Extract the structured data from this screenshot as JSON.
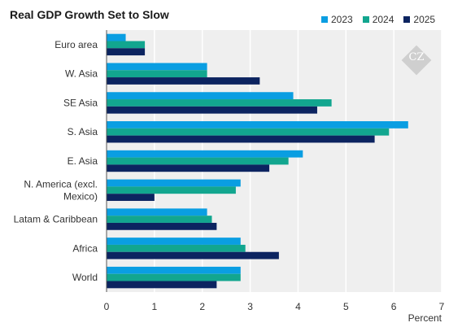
{
  "chart_data": {
    "type": "bar",
    "orientation": "horizontal",
    "title": "Real GDP Growth Set to Slow",
    "xlabel": "Percent",
    "ylabel": "",
    "xlim": [
      0,
      7
    ],
    "xticks": [
      0,
      1,
      2,
      3,
      4,
      5,
      6,
      7
    ],
    "grid": true,
    "legend_position": "top-right",
    "categories": [
      "Euro area",
      "W. Asia",
      "SE Asia",
      "S. Asia",
      "E. Asia",
      "N. America (excl. Mexico)",
      "Latam & Caribbean",
      "Africa",
      "World"
    ],
    "category_lines": [
      [
        "Euro area"
      ],
      [
        "W. Asia"
      ],
      [
        "SE Asia"
      ],
      [
        "S. Asia"
      ],
      [
        "E. Asia"
      ],
      [
        "N. America (excl.",
        "Mexico)"
      ],
      [
        "Latam & Caribbean"
      ],
      [
        "Africa"
      ],
      [
        "World"
      ]
    ],
    "series": [
      {
        "name": "2023",
        "color": "#0a9ee2",
        "values": [
          0.4,
          2.1,
          3.9,
          6.3,
          4.1,
          2.8,
          2.1,
          2.8,
          2.8
        ]
      },
      {
        "name": "2024",
        "color": "#12a68f",
        "values": [
          0.8,
          2.1,
          4.7,
          5.9,
          3.8,
          2.7,
          2.2,
          2.9,
          2.8
        ]
      },
      {
        "name": "2025",
        "color": "#0c2460",
        "values": [
          0.8,
          3.2,
          4.4,
          5.6,
          3.4,
          1.0,
          2.3,
          3.6,
          2.3
        ]
      }
    ]
  },
  "watermark": {
    "text": "CZ"
  }
}
